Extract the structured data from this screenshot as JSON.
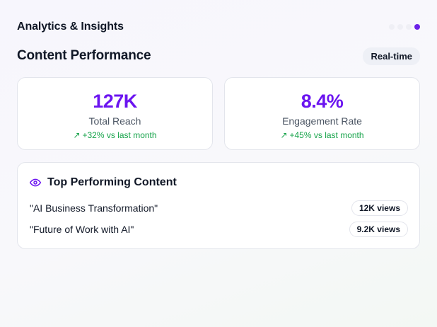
{
  "header": {
    "title": "Analytics & Insights",
    "page_dots": 4,
    "active_dot": 4
  },
  "section": {
    "title": "Content Performance",
    "badge": "Real-time"
  },
  "stats": [
    {
      "value": "127K",
      "label": "Total Reach",
      "delta": "+32% vs last month",
      "delta_icon": "arrow-up-right-icon"
    },
    {
      "value": "8.4%",
      "label": "Engagement Rate",
      "delta": "+45% vs last month",
      "delta_icon": "arrow-up-right-icon"
    }
  ],
  "top_content": {
    "title": "Top Performing Content",
    "icon": "eye-icon",
    "items": [
      {
        "title": "\"AI Business Transformation\"",
        "views": "12K views"
      },
      {
        "title": "\"Future of Work with AI\"",
        "views": "9.2K views"
      }
    ]
  },
  "colors": {
    "accent": "#6b14f0",
    "positive": "#16a34a",
    "active_dot": "#6b21e8"
  }
}
